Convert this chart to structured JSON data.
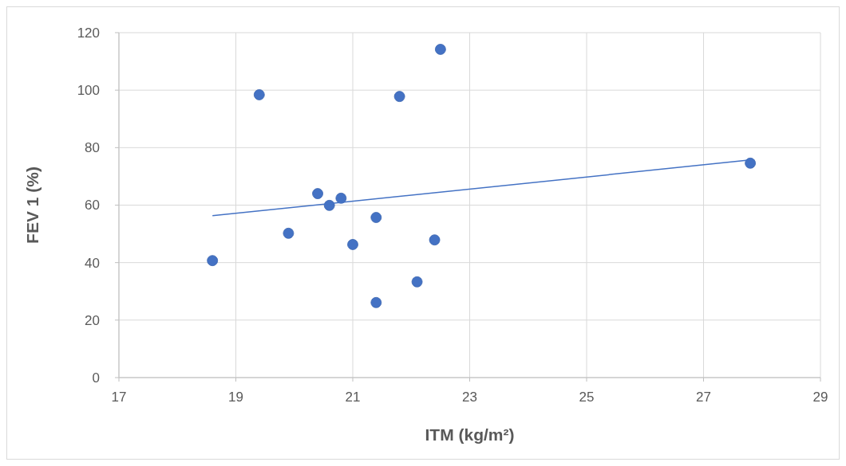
{
  "chart_data": {
    "type": "scatter",
    "xlabel": "ITM (kg/m²)",
    "ylabel": "FEV 1 (%)",
    "xlim": [
      17,
      29
    ],
    "xticks": [
      17,
      19,
      21,
      23,
      25,
      27,
      29
    ],
    "ylim": [
      0,
      120
    ],
    "yticks": [
      0,
      20,
      40,
      60,
      80,
      100,
      120
    ],
    "grid": true,
    "marker": "circle",
    "series": [
      {
        "color": "#4472c4",
        "x": [
          18.6,
          19.4,
          19.9,
          20.4,
          20.6,
          20.8,
          21.0,
          21.4,
          21.4,
          21.8,
          22.1,
          22.4,
          22.5,
          27.8
        ],
        "values": [
          40.7,
          98.4,
          50.2,
          64.0,
          59.9,
          62.4,
          46.3,
          55.7,
          26.1,
          97.8,
          33.3,
          47.9,
          114.2,
          74.6
        ]
      },
      {
        "type": "line",
        "color": "#4472c4",
        "marker": "none",
        "x": [
          18.6,
          27.8
        ],
        "values": [
          56.3,
          75.7
        ]
      }
    ]
  }
}
